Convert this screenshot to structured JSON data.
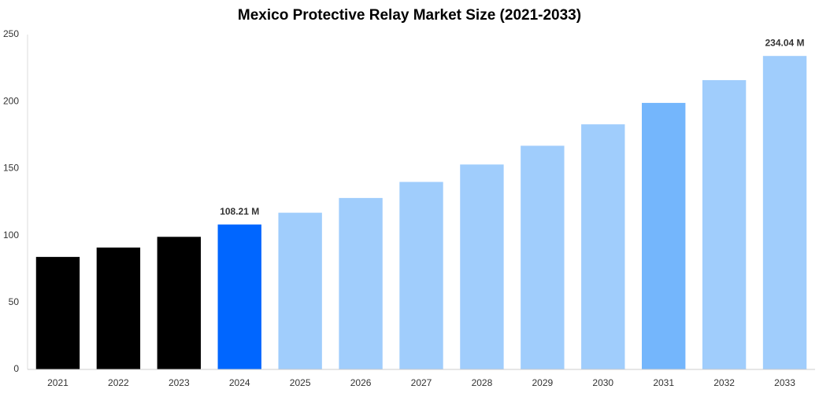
{
  "chart_data": {
    "type": "bar",
    "title": "Mexico Protective Relay Market Size (2021-2033)",
    "categories": [
      "2021",
      "2022",
      "2023",
      "2024",
      "2025",
      "2026",
      "2027",
      "2028",
      "2029",
      "2030",
      "2031",
      "2032",
      "2033"
    ],
    "values": [
      84,
      91,
      99,
      108.21,
      117,
      128,
      140,
      153,
      167,
      183,
      199,
      216,
      234.04
    ],
    "value_labels": [
      null,
      null,
      null,
      "108.21 M",
      null,
      null,
      null,
      null,
      null,
      null,
      null,
      null,
      "234.04 M"
    ],
    "colors": [
      "#000000",
      "#000000",
      "#000000",
      "#0066ff",
      "#a0cdfc",
      "#a0cdfc",
      "#a0cdfc",
      "#a0cdfc",
      "#a0cdfc",
      "#a0cdfc",
      "#74b6fc",
      "#a0cdfc",
      "#a0cdfc"
    ],
    "ylim": [
      0,
      250
    ],
    "yticks": [
      0,
      50,
      100,
      150,
      200,
      250
    ],
    "grid": false
  }
}
